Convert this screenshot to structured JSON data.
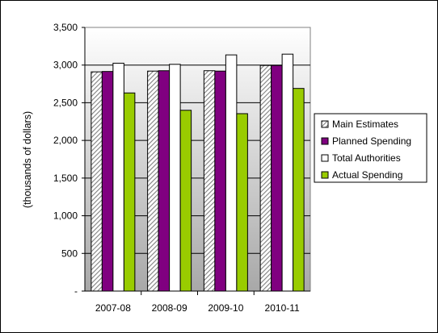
{
  "chart_data": {
    "type": "bar",
    "title": "",
    "xlabel": "",
    "ylabel": "(thousands of dollars)",
    "ylim": [
      0,
      3500
    ],
    "yticks": [
      0,
      500,
      1000,
      1500,
      2000,
      2500,
      3000,
      3500
    ],
    "ytick_labels": [
      "-",
      "500",
      "1,000",
      "1,500",
      "2,000",
      "2,500",
      "3,000",
      "3,500"
    ],
    "grid": true,
    "legend_position": "right",
    "categories": [
      "2007-08",
      "2008-09",
      "2009-10",
      "2010-11"
    ],
    "series": [
      {
        "name": "Main Estimates",
        "values": [
          2910,
          2920,
          2925,
          2995
        ],
        "color": "#c0c0c0",
        "pattern": "hatch"
      },
      {
        "name": "Planned Spending",
        "values": [
          2915,
          2925,
          2920,
          2995
        ],
        "color": "#800080",
        "pattern": "solid"
      },
      {
        "name": "Total Authorities",
        "values": [
          3025,
          3010,
          3135,
          3145
        ],
        "color": "#ffffff",
        "pattern": "solid"
      },
      {
        "name": "Actual Spending",
        "values": [
          2630,
          2400,
          2355,
          2690
        ],
        "color": "#99cc00",
        "pattern": "solid"
      }
    ]
  }
}
